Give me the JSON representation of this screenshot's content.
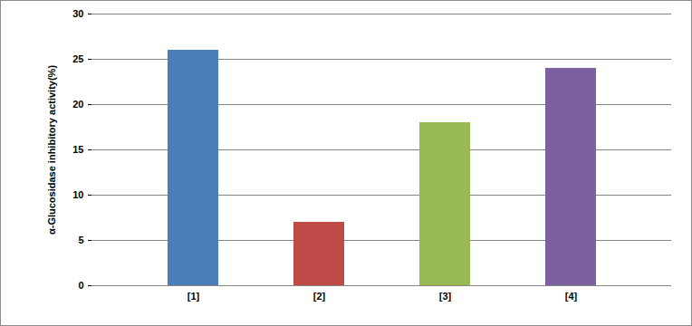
{
  "chart_data": {
    "type": "bar",
    "ylabel": "α-Glucosidase inhibitory activity(%)",
    "categories": [
      "[1]",
      "[2]",
      "[3]",
      "[4]"
    ],
    "values": [
      26,
      7,
      18,
      24
    ],
    "colors": [
      "#4a7ebb",
      "#be4b48",
      "#98b954",
      "#7d60a0"
    ],
    "ylim": [
      0,
      30
    ],
    "yticks": [
      0,
      5,
      10,
      15,
      20,
      25,
      30
    ],
    "grid": true
  }
}
